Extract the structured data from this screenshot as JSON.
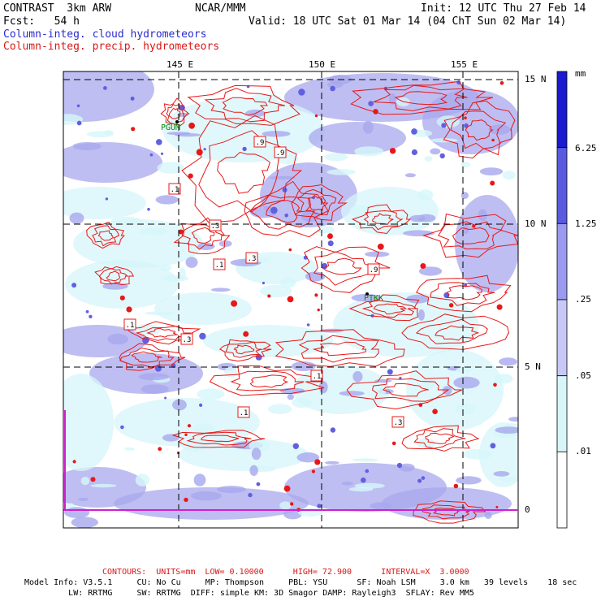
{
  "header": {
    "model": "CONTRAST  3km ARW",
    "center": "NCAR/MMM",
    "init": "Init: 12 UTC Thu 27 Feb 14",
    "fcst": "Fcst:   54 h",
    "valid": "Valid: 18 UTC Sat 01 Mar 14 (04 ChT Sun 02 Mar 14)",
    "field_cloud": "Column-integ. cloud hydrometeors",
    "field_precip": "Column-integ. precip. hydrometeors"
  },
  "map": {
    "lon_labels": [
      "145 E",
      "150 E",
      "155 E"
    ],
    "lat_labels": [
      "15 N",
      "10 N",
      "5 N",
      "0"
    ],
    "stations": [
      "PGUM",
      "PTKK"
    ],
    "contour_labels": [
      ".1",
      ".3",
      ".9",
      ".1",
      ".3",
      ".9",
      ".1",
      ".3",
      ".1",
      ".9",
      ".3",
      ".1"
    ],
    "colors": {
      "cloud_light": "#d6f6fa",
      "cloud_mid": "#a8a8ee",
      "cloud_dark": "#6060e0",
      "precip": "#e81818"
    }
  },
  "colorbar": {
    "units": "mm",
    "levels": [
      "6.25",
      "1.25",
      ".25",
      ".05",
      ".01"
    ],
    "colors": [
      "#1a1ad0",
      "#5a5ae0",
      "#9a9af0",
      "#c8c8f8",
      "#d8f6fa",
      "#ffffff"
    ]
  },
  "footer": {
    "contours": "CONTOURS:  UNITS=mm  LOW= 0.10000      HIGH= 72.900      INTERVAL=X  3.0000",
    "info1": "Model Info: V3.5.1     CU: No Cu     MP: Thompson     PBL: YSU      SF: Noah LSM     3.0 km   39 levels    18 sec",
    "info2": "         LW: RRTMG     SW: RRTMG  DIFF: simple KM: 3D Smagor DAMP: Rayleigh3  SFLAY: Rev MM5"
  }
}
